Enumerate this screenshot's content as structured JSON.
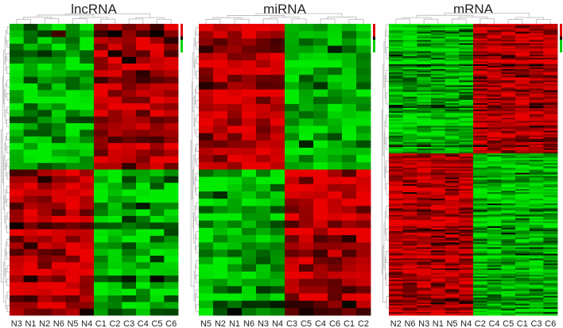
{
  "chart_data": [
    {
      "type": "heatmap",
      "title": "lncRNA",
      "columns": [
        "N3",
        "N1",
        "N2",
        "N6",
        "N5",
        "N4",
        "C1",
        "C2",
        "C3",
        "C4",
        "C5",
        "C6"
      ],
      "row_clusters": [
        {
          "rows": 22,
          "pattern": [
            -1,
            -1,
            -1,
            -1,
            -1,
            -1,
            1,
            1,
            1,
            1,
            1,
            1
          ]
        },
        {
          "rows": 22,
          "pattern": [
            1,
            1,
            1,
            1,
            1,
            1,
            -1,
            -1,
            -1,
            -1,
            -1,
            -1
          ]
        }
      ],
      "color_scale": {
        "high": "#e00000",
        "mid": "#000000",
        "low": "#00e000"
      }
    },
    {
      "type": "heatmap",
      "title": "miRNA",
      "columns": [
        "N5",
        "N2",
        "N1",
        "N6",
        "N3",
        "N4",
        "C3",
        "C5",
        "C4",
        "C6",
        "C1",
        "C2"
      ],
      "row_clusters": [
        {
          "rows": 20,
          "pattern": [
            1,
            1,
            1,
            1,
            1,
            1,
            -1,
            -1,
            -1,
            -1,
            -1,
            -1
          ]
        },
        {
          "rows": 20,
          "pattern": [
            -1,
            -1,
            -1,
            -1,
            -1,
            -1,
            1,
            1,
            1,
            1,
            1,
            1
          ]
        }
      ],
      "color_scale": {
        "high": "#e00000",
        "mid": "#000000",
        "low": "#00e000"
      }
    },
    {
      "type": "heatmap",
      "title": "mRNA",
      "columns": [
        "N2",
        "N6",
        "N3",
        "N1",
        "N5",
        "N4",
        "C2",
        "C4",
        "C5",
        "C1",
        "C3",
        "C6"
      ],
      "row_clusters": [
        {
          "rows": 80,
          "pattern": [
            -1,
            -1,
            -1,
            -1,
            -1,
            -1,
            1,
            1,
            1,
            1,
            1,
            1
          ]
        },
        {
          "rows": 100,
          "pattern": [
            1,
            1,
            1,
            1,
            1,
            1,
            -1,
            -1,
            -1,
            -1,
            -1,
            -1
          ]
        }
      ],
      "color_scale": {
        "high": "#e00000",
        "mid": "#000000",
        "low": "#00e000"
      }
    }
  ]
}
